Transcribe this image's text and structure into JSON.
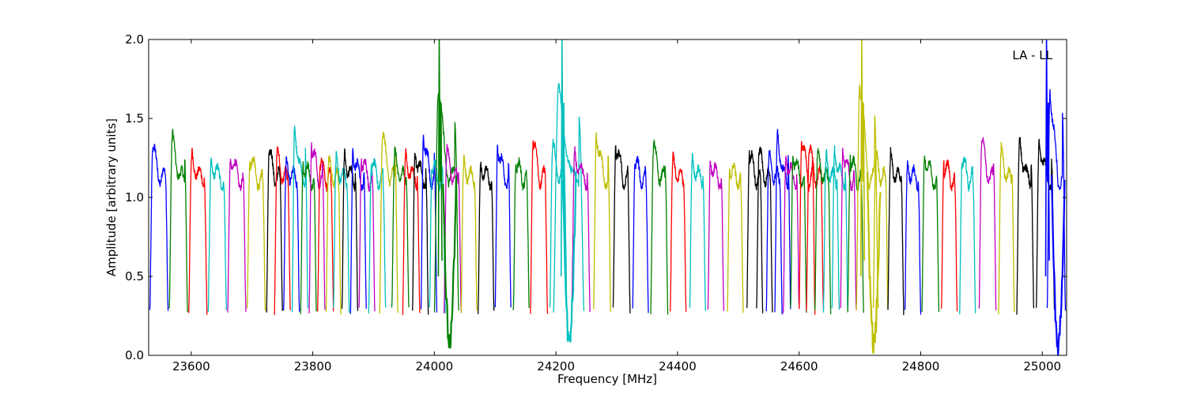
{
  "chart_data": {
    "type": "line",
    "title": "",
    "xlabel": "Frequency [MHz]",
    "ylabel": "Amplitude [arbitrary units]",
    "annotation": "LA - LL",
    "annotation_placement": "top-right",
    "xlim": [
      23530,
      25040
    ],
    "ylim": [
      0.0,
      2.0
    ],
    "x_ticks": [
      23600,
      23800,
      24000,
      24200,
      24400,
      24600,
      24800,
      25000
    ],
    "y_ticks": [
      0.0,
      0.5,
      1.0,
      1.5,
      2.0
    ],
    "x_tick_labels": [
      "23600",
      "23800",
      "24000",
      "24200",
      "24400",
      "24600",
      "24800",
      "25000"
    ],
    "y_tick_labels": [
      "0.0",
      "0.5",
      "1.0",
      "1.5",
      "2.0"
    ],
    "grid": false,
    "legend": "none",
    "color_cycle": [
      "#0000ff",
      "#008000",
      "#ff0000",
      "#00bfbf",
      "#bf00bf",
      "#bfbf00",
      "#000000"
    ],
    "band_shape": "each band: steep rise from ~0.25-0.3 at the low edge, plateau ~1.1-1.35, steep drop to ~0.25-0.3 at the high edge",
    "bands": [
      {
        "start": 23532,
        "end": 23562,
        "peak": 1.3,
        "color": "#0000ff"
      },
      {
        "start": 23564,
        "end": 23594,
        "peak": 1.37,
        "color": "#008000"
      },
      {
        "start": 23596,
        "end": 23626,
        "peak": 1.26,
        "color": "#ff0000"
      },
      {
        "start": 23628,
        "end": 23658,
        "peak": 1.23,
        "color": "#00bfbf"
      },
      {
        "start": 23660,
        "end": 23690,
        "peak": 1.26,
        "color": "#bf00bf"
      },
      {
        "start": 23692,
        "end": 23722,
        "peak": 1.25,
        "color": "#bfbf00"
      },
      {
        "start": 23724,
        "end": 23750,
        "peak": 1.28,
        "color": "#000000"
      },
      {
        "start": 23737,
        "end": 23763,
        "peak": 1.26,
        "color": "#ff0000"
      },
      {
        "start": 23752,
        "end": 23778,
        "peak": 1.2,
        "color": "#0000ff"
      },
      {
        "start": 23766,
        "end": 23792,
        "peak": 1.44,
        "color": "#00bfbf"
      },
      {
        "start": 23780,
        "end": 23806,
        "peak": 1.22,
        "color": "#008000"
      },
      {
        "start": 23794,
        "end": 23820,
        "peak": 1.34,
        "color": "#bf00bf"
      },
      {
        "start": 23808,
        "end": 23834,
        "peak": 1.22,
        "color": "#ff0000"
      },
      {
        "start": 23822,
        "end": 23846,
        "peak": 1.2,
        "color": "#bfbf00"
      },
      {
        "start": 23834,
        "end": 23860,
        "peak": 1.22,
        "color": "#00bfbf"
      },
      {
        "start": 23848,
        "end": 23874,
        "peak": 1.26,
        "color": "#000000"
      },
      {
        "start": 23862,
        "end": 23888,
        "peak": 1.3,
        "color": "#0000ff"
      },
      {
        "start": 23876,
        "end": 23902,
        "peak": 1.25,
        "color": "#bf00bf"
      },
      {
        "start": 23892,
        "end": 23920,
        "peak": 1.2,
        "color": "#00bfbf"
      },
      {
        "start": 23910,
        "end": 23940,
        "peak": 1.38,
        "color": "#bfbf00"
      },
      {
        "start": 23930,
        "end": 23958,
        "peak": 1.25,
        "color": "#008000"
      },
      {
        "start": 23948,
        "end": 23976,
        "peak": 1.26,
        "color": "#ff0000"
      },
      {
        "start": 23964,
        "end": 23990,
        "peak": 1.3,
        "color": "#000000"
      },
      {
        "start": 23978,
        "end": 24004,
        "peak": 1.4,
        "color": "#0000ff"
      },
      {
        "start": 23992,
        "end": 24018,
        "peak": 1.2,
        "color": "#00bfbf"
      },
      {
        "start": 24000,
        "end": 24040,
        "peak": 1.66,
        "color": "#008000"
      },
      {
        "start": 24016,
        "end": 24044,
        "peak": 1.27,
        "color": "#bf00bf"
      },
      {
        "start": 24044,
        "end": 24070,
        "peak": 1.21,
        "color": "#bfbf00"
      },
      {
        "start": 24072,
        "end": 24098,
        "peak": 1.22,
        "color": "#000000"
      },
      {
        "start": 24100,
        "end": 24126,
        "peak": 1.34,
        "color": "#0000ff"
      },
      {
        "start": 24130,
        "end": 24156,
        "peak": 1.22,
        "color": "#008000"
      },
      {
        "start": 24158,
        "end": 24186,
        "peak": 1.34,
        "color": "#ff0000"
      },
      {
        "start": 24190,
        "end": 24218,
        "peak": 1.31,
        "color": "#00bfbf"
      },
      {
        "start": 24196,
        "end": 24246,
        "peak": 1.68,
        "color": "#00bfbf"
      },
      {
        "start": 24226,
        "end": 24256,
        "peak": 1.28,
        "color": "#bf00bf"
      },
      {
        "start": 24262,
        "end": 24290,
        "peak": 1.42,
        "color": "#bfbf00"
      },
      {
        "start": 24294,
        "end": 24322,
        "peak": 1.33,
        "color": "#000000"
      },
      {
        "start": 24326,
        "end": 24352,
        "peak": 1.22,
        "color": "#0000ff"
      },
      {
        "start": 24356,
        "end": 24384,
        "peak": 1.31,
        "color": "#008000"
      },
      {
        "start": 24388,
        "end": 24414,
        "peak": 1.22,
        "color": "#ff0000"
      },
      {
        "start": 24420,
        "end": 24446,
        "peak": 1.24,
        "color": "#00bfbf"
      },
      {
        "start": 24450,
        "end": 24476,
        "peak": 1.24,
        "color": "#bf00bf"
      },
      {
        "start": 24482,
        "end": 24508,
        "peak": 1.2,
        "color": "#bfbf00"
      },
      {
        "start": 24514,
        "end": 24540,
        "peak": 1.28,
        "color": "#000000"
      },
      {
        "start": 24530,
        "end": 24556,
        "peak": 1.28,
        "color": "#000000"
      },
      {
        "start": 24546,
        "end": 24572,
        "peak": 1.24,
        "color": "#0000ff"
      },
      {
        "start": 24560,
        "end": 24586,
        "peak": 1.39,
        "color": "#0000ff"
      },
      {
        "start": 24574,
        "end": 24600,
        "peak": 1.26,
        "color": "#bf00bf"
      },
      {
        "start": 24586,
        "end": 24612,
        "peak": 1.28,
        "color": "#008000"
      },
      {
        "start": 24600,
        "end": 24626,
        "peak": 1.37,
        "color": "#ff0000"
      },
      {
        "start": 24612,
        "end": 24640,
        "peak": 1.3,
        "color": "#ff0000"
      },
      {
        "start": 24626,
        "end": 24652,
        "peak": 1.26,
        "color": "#008000"
      },
      {
        "start": 24640,
        "end": 24666,
        "peak": 1.24,
        "color": "#00bfbf"
      },
      {
        "start": 24654,
        "end": 24680,
        "peak": 1.3,
        "color": "#00bfbf"
      },
      {
        "start": 24668,
        "end": 24694,
        "peak": 1.31,
        "color": "#bf00bf"
      },
      {
        "start": 24680,
        "end": 24706,
        "peak": 1.25,
        "color": "#008000"
      },
      {
        "start": 24694,
        "end": 24730,
        "peak": 1.7,
        "color": "#bfbf00"
      },
      {
        "start": 24722,
        "end": 24746,
        "peak": 1.24,
        "color": "#bfbf00"
      },
      {
        "start": 24746,
        "end": 24772,
        "peak": 1.24,
        "color": "#000000"
      },
      {
        "start": 24774,
        "end": 24800,
        "peak": 1.2,
        "color": "#0000ff"
      },
      {
        "start": 24802,
        "end": 24830,
        "peak": 1.28,
        "color": "#008000"
      },
      {
        "start": 24834,
        "end": 24860,
        "peak": 1.22,
        "color": "#ff0000"
      },
      {
        "start": 24864,
        "end": 24890,
        "peak": 1.23,
        "color": "#00bfbf"
      },
      {
        "start": 24896,
        "end": 24924,
        "peak": 1.35,
        "color": "#bf00bf"
      },
      {
        "start": 24928,
        "end": 24954,
        "peak": 1.28,
        "color": "#bfbf00"
      },
      {
        "start": 24958,
        "end": 24986,
        "peak": 1.36,
        "color": "#000000"
      },
      {
        "start": 24990,
        "end": 25020,
        "peak": 1.36,
        "color": "#000000"
      },
      {
        "start": 25008,
        "end": 25038,
        "peak": 1.68,
        "color": "#0000ff"
      }
    ],
    "deep_absorption_features": [
      {
        "center": 24025,
        "min": 0.08,
        "color": "#008000"
      },
      {
        "center": 24222,
        "min": 0.07,
        "color": "#00bfbf"
      },
      {
        "center": 24723,
        "min": 0.07,
        "color": "#bfbf00"
      },
      {
        "center": 25026,
        "min": 0.07,
        "color": "#0000ff"
      }
    ],
    "tall_spikes": [
      {
        "x": 24008,
        "y": 2.0,
        "color": "#008000"
      },
      {
        "x": 24210,
        "y": 2.0,
        "color": "#00bfbf"
      },
      {
        "x": 24703,
        "y": 2.0,
        "color": "#bfbf00"
      },
      {
        "x": 25007,
        "y": 2.0,
        "color": "#0000ff"
      }
    ]
  }
}
